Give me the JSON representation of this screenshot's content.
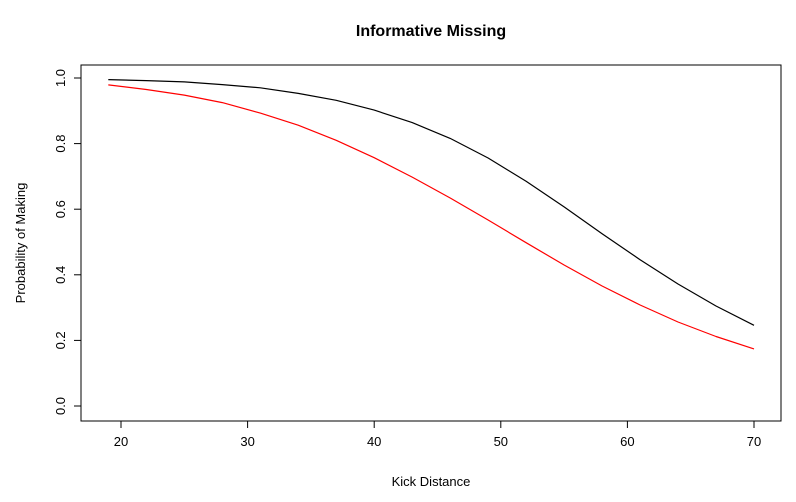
{
  "chart_data": {
    "type": "line",
    "title": "Informative Missing",
    "xlabel": "Kick Distance",
    "ylabel": "Probability of Making",
    "xlim": [
      18,
      71
    ],
    "ylim": [
      0,
      1.02
    ],
    "x_ticks": [
      20,
      30,
      40,
      50,
      60,
      70
    ],
    "y_ticks": [
      0.0,
      0.2,
      0.4,
      0.6,
      0.8,
      1.0
    ],
    "x_tick_labels": [
      "20",
      "30",
      "40",
      "50",
      "60",
      "70"
    ],
    "y_tick_labels": [
      "0.0",
      "0.2",
      "0.4",
      "0.6",
      "0.8",
      "1.0"
    ],
    "grid": false,
    "legend": "none",
    "series": [
      {
        "color": "#000000",
        "x": [
          19,
          22,
          25,
          28,
          31,
          34,
          37,
          40,
          43,
          46,
          49,
          52,
          55,
          58,
          61,
          64,
          67,
          70
        ],
        "y": [
          0.995,
          0.992,
          0.988,
          0.98,
          0.97,
          0.953,
          0.932,
          0.902,
          0.864,
          0.816,
          0.756,
          0.685,
          0.607,
          0.525,
          0.446,
          0.372,
          0.305,
          0.246
        ]
      },
      {
        "color": "#ff0000",
        "x": [
          19,
          22,
          25,
          28,
          31,
          34,
          37,
          40,
          43,
          46,
          49,
          52,
          55,
          58,
          61,
          64,
          67,
          70
        ],
        "y": [
          0.979,
          0.965,
          0.948,
          0.925,
          0.893,
          0.856,
          0.81,
          0.757,
          0.698,
          0.634,
          0.567,
          0.498,
          0.43,
          0.366,
          0.308,
          0.256,
          0.212,
          0.174
        ]
      }
    ]
  }
}
